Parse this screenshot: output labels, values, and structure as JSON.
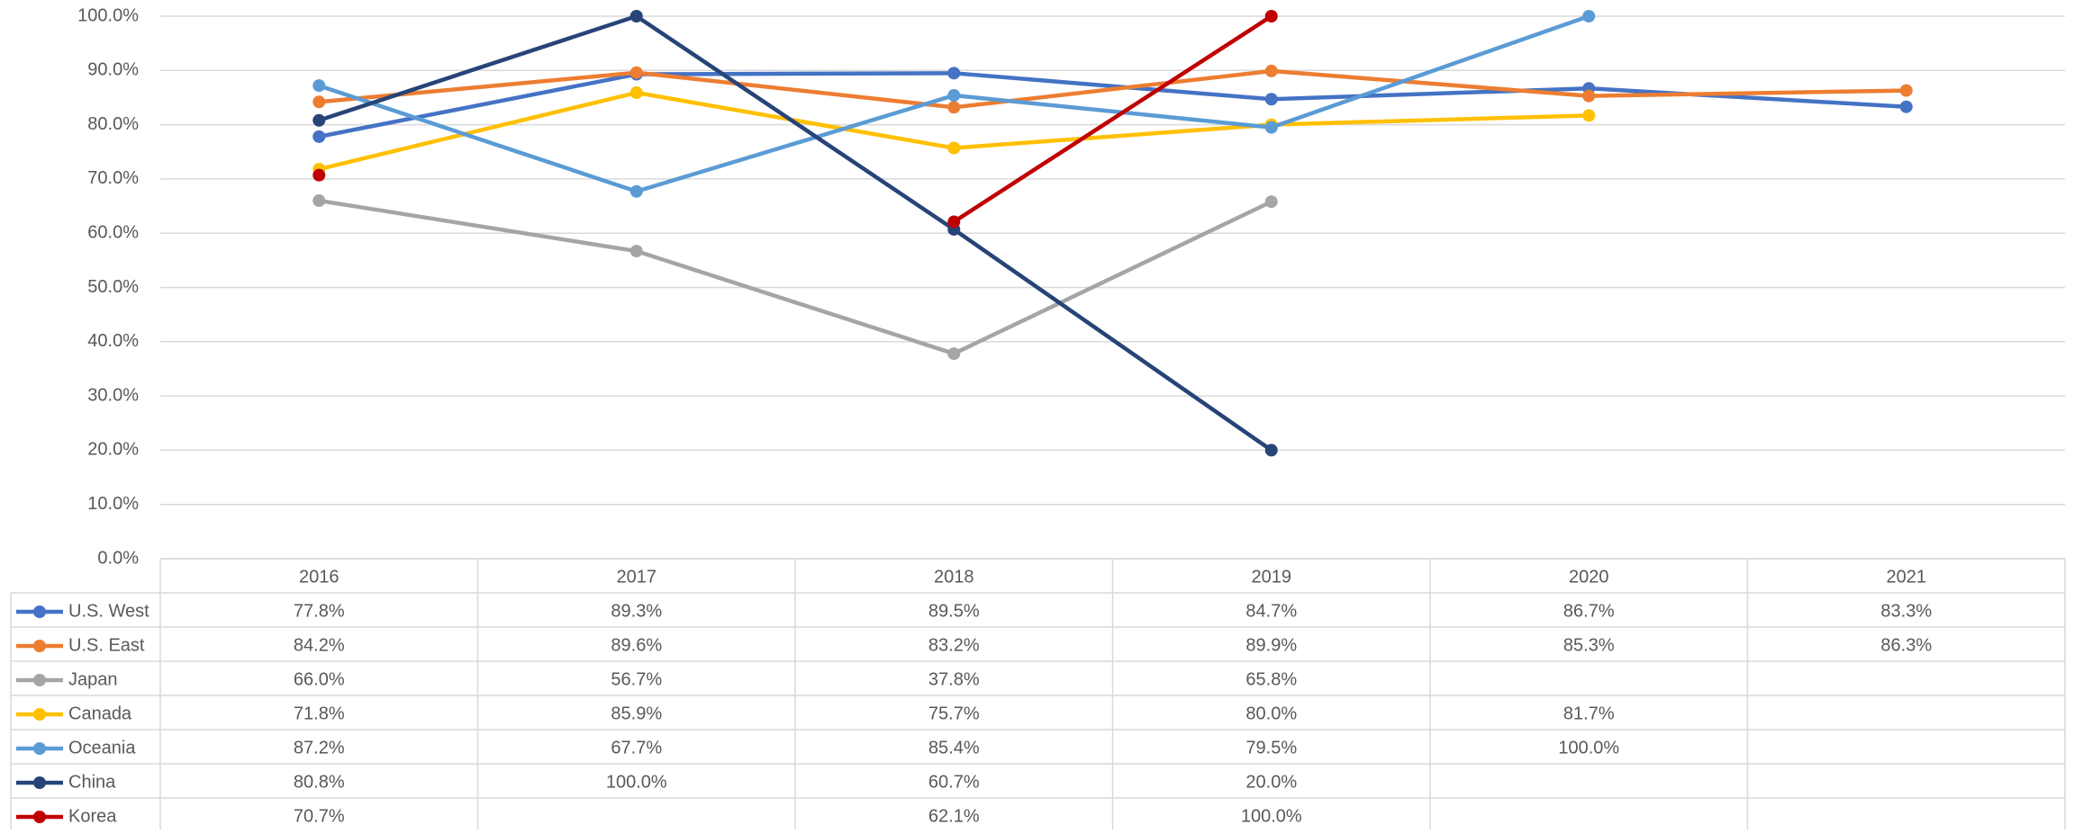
{
  "chart_data": {
    "type": "line",
    "categories": [
      "2016",
      "2017",
      "2018",
      "2019",
      "2020",
      "2021"
    ],
    "ylim": [
      0,
      100
    ],
    "yticks": [
      {
        "value": 0,
        "label": "0.0%"
      },
      {
        "value": 10,
        "label": "10.0%"
      },
      {
        "value": 20,
        "label": "20.0%"
      },
      {
        "value": 30,
        "label": "30.0%"
      },
      {
        "value": 40,
        "label": "40.0%"
      },
      {
        "value": 50,
        "label": "50.0%"
      },
      {
        "value": 60,
        "label": "60.0%"
      },
      {
        "value": 70,
        "label": "70.0%"
      },
      {
        "value": 80,
        "label": "80.0%"
      },
      {
        "value": 90,
        "label": "90.0%"
      },
      {
        "value": 100,
        "label": "100.0%"
      }
    ],
    "grid": true,
    "series": [
      {
        "name": "U.S. West",
        "color": "#4472c4",
        "values": [
          77.8,
          89.3,
          89.5,
          84.7,
          86.7,
          83.3
        ],
        "value_labels": [
          "77.8%",
          "89.3%",
          "89.5%",
          "84.7%",
          "86.7%",
          "83.3%"
        ]
      },
      {
        "name": "U.S. East",
        "color": "#ed7d31",
        "values": [
          84.2,
          89.6,
          83.2,
          89.9,
          85.3,
          86.3
        ],
        "value_labels": [
          "84.2%",
          "89.6%",
          "83.2%",
          "89.9%",
          "85.3%",
          "86.3%"
        ]
      },
      {
        "name": "Japan",
        "color": "#a5a5a5",
        "values": [
          66.0,
          56.7,
          37.8,
          65.8,
          null,
          null
        ],
        "value_labels": [
          "66.0%",
          "56.7%",
          "37.8%",
          "65.8%",
          null,
          null
        ]
      },
      {
        "name": "Canada",
        "color": "#ffc000",
        "values": [
          71.8,
          85.9,
          75.7,
          80.0,
          81.7,
          null
        ],
        "value_labels": [
          "71.8%",
          "85.9%",
          "75.7%",
          "80.0%",
          "81.7%",
          null
        ]
      },
      {
        "name": "Oceania",
        "color": "#5b9bd5",
        "values": [
          87.2,
          67.7,
          85.4,
          79.5,
          100.0,
          null
        ],
        "value_labels": [
          "87.2%",
          "67.7%",
          "85.4%",
          "79.5%",
          "100.0%",
          null
        ]
      },
      {
        "name": "China",
        "color": "#264478",
        "values": [
          80.8,
          100.0,
          60.7,
          20.0,
          null,
          null
        ],
        "value_labels": [
          "80.8%",
          "100.0%",
          "60.7%",
          "20.0%",
          null,
          null
        ]
      },
      {
        "name": "Korea",
        "color": "#c00000",
        "values": [
          70.7,
          null,
          62.1,
          100.0,
          null,
          null
        ],
        "value_labels": [
          "70.7%",
          null,
          "62.1%",
          "100.0%",
          null,
          null
        ]
      }
    ]
  }
}
